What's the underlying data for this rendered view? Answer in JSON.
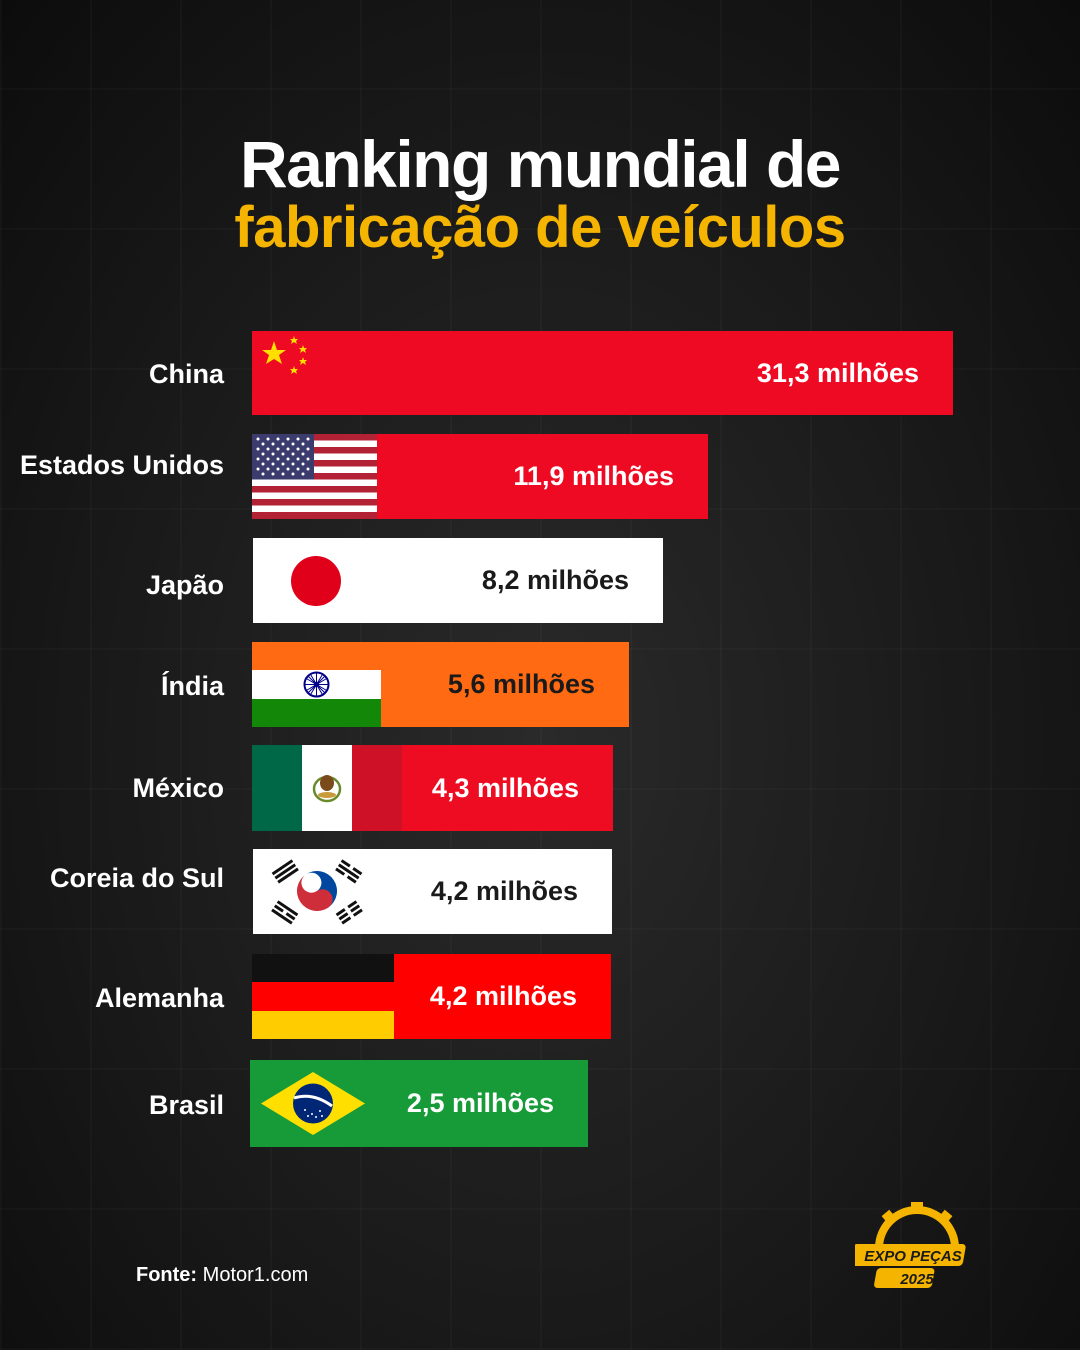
{
  "title_line1": "Ranking mundial de",
  "title_line2": "fabricação de veículos",
  "colors": {
    "title_accent": "#f5b400",
    "background": "#1a1a1a"
  },
  "chart_data": {
    "type": "bar",
    "orientation": "horizontal",
    "unit": "milhões",
    "categories": [
      "China",
      "Estados Unidos",
      "Japão",
      "Índia",
      "México",
      "Coreia do Sul",
      "Alemanha",
      "Brasil"
    ],
    "values": [
      31.3,
      11.9,
      8.2,
      5.6,
      4.3,
      4.2,
      4.2,
      2.5
    ],
    "value_labels": [
      "31,3 milhões",
      "11,9 milhões",
      "8,2 milhões",
      "5,6 milhões",
      "4,3 milhões",
      "4,2 milhões",
      "4,2 milhões",
      "2,5 milhões"
    ],
    "bar_colors": [
      "#ee0a22",
      "#ee0a22",
      "#ffffff",
      "#ff6a13",
      "#ee0c22",
      "#ffffff",
      "#ff0000",
      "#169b38"
    ],
    "value_text_colors": [
      "#ffffff",
      "#ffffff",
      "#1a1a1a",
      "#1a1a1a",
      "#ffffff",
      "#1a1a1a",
      "#ffffff",
      "#ffffff"
    ],
    "flag_icons": [
      "china-flag-icon",
      "usa-flag-icon",
      "japan-flag-icon",
      "india-flag-icon",
      "mexico-flag-icon",
      "south-korea-flag-icon",
      "germany-flag-icon",
      "brazil-flag-icon"
    ]
  },
  "source": {
    "label": "Fonte:",
    "text": "Motor1.com"
  },
  "logo": {
    "line1": "EXPO PEÇAS",
    "line2": "2025"
  }
}
